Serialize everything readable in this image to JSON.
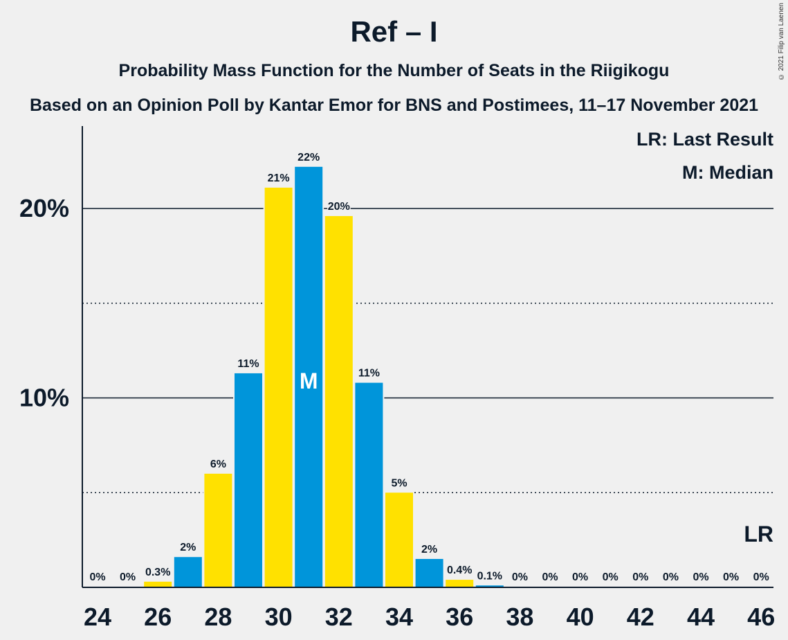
{
  "title": "Ref – I",
  "subtitle": "Probability Mass Function for the Number of Seats in the Riigikogu",
  "source": "Based on an Opinion Poll by Kantar Emor for BNS and Postimees, 11–17 November 2021",
  "copyright": "© 2021 Filip van Laenen",
  "colors": {
    "blue": "#0095da",
    "yellow": "#ffe100",
    "text": "#0c1a2a",
    "background": "#f0f0f0"
  },
  "chart_data": {
    "type": "bar",
    "xlabel": "",
    "ylabel": "",
    "x": [
      24,
      25,
      26,
      27,
      28,
      29,
      30,
      31,
      32,
      33,
      34,
      35,
      36,
      37,
      38,
      39,
      40,
      41,
      42,
      43,
      44,
      45,
      46
    ],
    "values": [
      0,
      0,
      0.3,
      1.6,
      6,
      11.3,
      21.1,
      22.2,
      19.6,
      10.8,
      5,
      1.5,
      0.4,
      0.1,
      0,
      0,
      0,
      0,
      0,
      0,
      0,
      0,
      0
    ],
    "labels": [
      "0%",
      "0%",
      "0.3%",
      "2%",
      "6%",
      "11%",
      "21%",
      "22%",
      "20%",
      "11%",
      "5%",
      "2%",
      "0.4%",
      "0.1%",
      "0%",
      "0%",
      "0%",
      "0%",
      "0%",
      "0%",
      "0%",
      "0%",
      "0%"
    ],
    "xticks": [
      "24",
      "26",
      "28",
      "30",
      "32",
      "34",
      "36",
      "38",
      "40",
      "42",
      "44",
      "46"
    ],
    "yticks": [
      {
        "value": 10,
        "label": "10%"
      },
      {
        "value": 20,
        "label": "20%"
      }
    ],
    "minor_gridlines": [
      5,
      15
    ],
    "ylim": [
      0,
      24
    ],
    "median_seat": 31,
    "median_marker": "M",
    "last_result_seat": 46,
    "last_result_marker": "LR",
    "legend": [
      "LR: Last Result",
      "M: Median"
    ]
  }
}
